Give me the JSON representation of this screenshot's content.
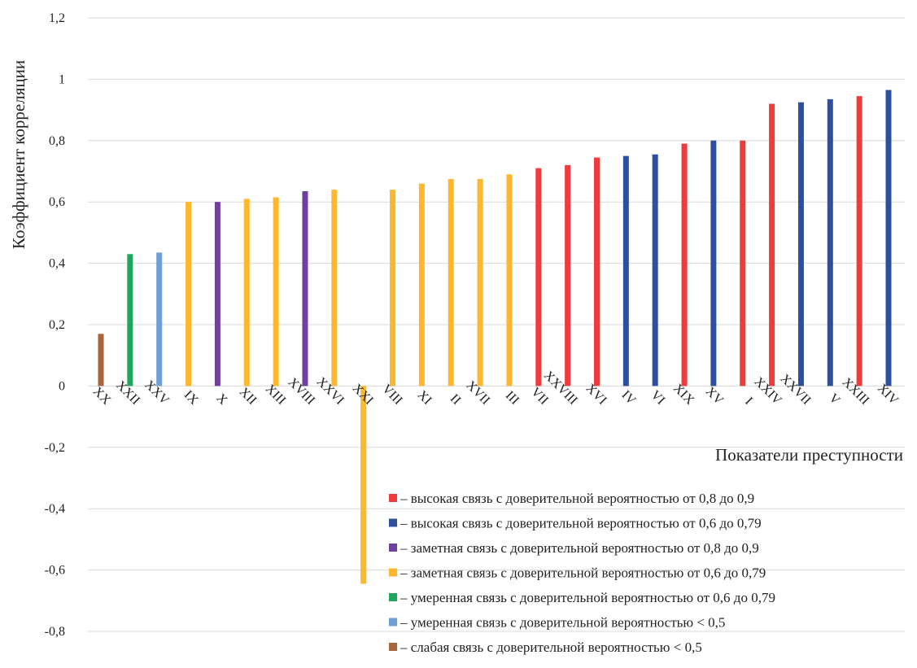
{
  "chart_data": {
    "type": "bar",
    "ylabel": "Коэффициент корреляции",
    "xlabel": "Показатели преступности",
    "ylim": [
      -0.8,
      1.2
    ],
    "y_ticks": [
      "1,2",
      "1",
      "0,8",
      "0,6",
      "0,4",
      "0,2",
      "0",
      "-0,2",
      "-0,4",
      "-0,6",
      "-0,8"
    ],
    "y_tick_values": [
      1.2,
      1.0,
      0.8,
      0.6,
      0.4,
      0.2,
      0,
      -0.2,
      -0.4,
      -0.6,
      -0.8
    ],
    "grid": true,
    "categories": [
      "XX",
      "XXII",
      "XXV",
      "IX",
      "X",
      "XII",
      "XIII",
      "XVIII",
      "XXVI",
      "XXI",
      "VIII",
      "XI",
      "II",
      "XVII",
      "III",
      "VII",
      "XXVIII",
      "XVI",
      "IV",
      "VI",
      "XIX",
      "XV",
      "I",
      "XXIV",
      "XXVII",
      "V",
      "XXIII",
      "XIV"
    ],
    "values": [
      0.17,
      0.43,
      0.435,
      0.6,
      0.6,
      0.61,
      0.615,
      0.635,
      0.64,
      -0.645,
      0.64,
      0.66,
      0.675,
      0.675,
      0.69,
      0.71,
      0.72,
      0.745,
      0.75,
      0.755,
      0.79,
      0.8,
      0.8,
      0.92,
      0.925,
      0.935,
      0.945,
      0.965
    ],
    "bar_groups": [
      "brown",
      "green",
      "lightblue",
      "orange",
      "purple",
      "orange",
      "orange",
      "purple",
      "orange",
      "orange",
      "orange",
      "orange",
      "orange",
      "orange",
      "orange",
      "red",
      "red",
      "red",
      "blue",
      "blue",
      "red",
      "blue",
      "red",
      "red",
      "blue",
      "blue",
      "red",
      "blue"
    ],
    "colors": {
      "red": "#EE3B3B",
      "blue": "#2E4F9E",
      "purple": "#7040A0",
      "orange": "#FFB82E",
      "green": "#1FA65A",
      "lightblue": "#6F9FD8",
      "brown": "#A8653A"
    },
    "legend": [
      {
        "group": "red",
        "label": "– высокая связь с доверительной вероятностью от 0,8 до 0,9"
      },
      {
        "group": "blue",
        "label": "– высокая связь с доверительной вероятностью от 0,6 до 0,79"
      },
      {
        "group": "purple",
        "label": "– заметная связь с доверительной вероятностью от 0,8 до 0,9"
      },
      {
        "group": "orange",
        "label": "– заметная связь с доверительной вероятностью от 0,6 до 0,79"
      },
      {
        "group": "green",
        "label": "– умеренная связь с доверительной вероятностью от 0,6 до 0,79"
      },
      {
        "group": "lightblue",
        "label": "– умеренная связь с доверительной вероятностью < 0,5"
      },
      {
        "group": "brown",
        "label": "– слабая связь с доверительной вероятностью < 0,5"
      }
    ],
    "legend_position": "bottom-right"
  }
}
